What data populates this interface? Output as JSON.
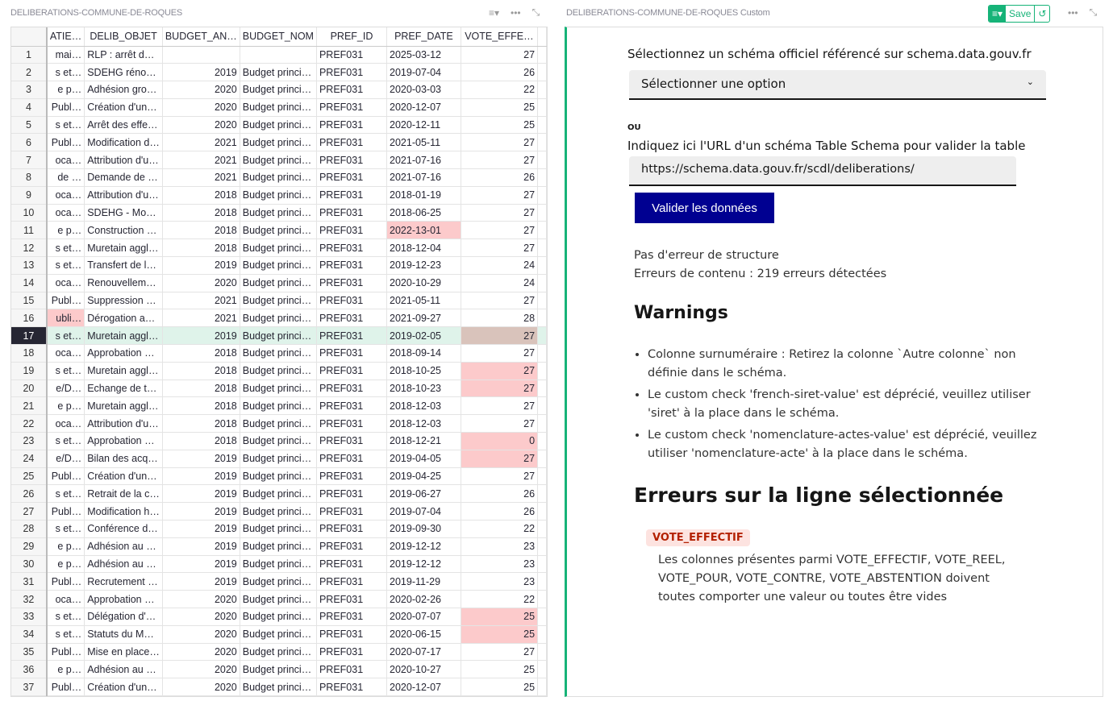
{
  "left_panel": {
    "title": "DELIBERATIONS-COMMUNE-DE-ROQUES",
    "columns": [
      "ATIE…",
      "DELIB_OBJET",
      "BUDGET_AN…",
      "BUDGET_NOM",
      "PREF_ID",
      "PREF_DATE",
      "VOTE_EFFE…"
    ],
    "rows": [
      [
        "1",
        "mai…",
        "RLP : arrêt d…",
        "",
        "",
        "PREF031",
        "2025-03-12",
        "27"
      ],
      [
        "2",
        "s et…",
        "SDEHG réno…",
        "2019",
        "Budget princi…",
        "PREF031",
        "2019-07-04",
        "26"
      ],
      [
        "3",
        "e p…",
        "Adhésion gro…",
        "2020",
        "Budget princi…",
        "PREF031",
        "2020-03-03",
        "22"
      ],
      [
        "4",
        "Publ…",
        "Création d'un…",
        "2020",
        "Budget princi…",
        "PREF031",
        "2020-12-07",
        "25"
      ],
      [
        "5",
        "s et…",
        "Arrêt des effe…",
        "2020",
        "Budget princi…",
        "PREF031",
        "2020-12-11",
        "25"
      ],
      [
        "6",
        "Publ…",
        "Modification d…",
        "2021",
        "Budget princi…",
        "PREF031",
        "2021-05-11",
        "27"
      ],
      [
        "7",
        "oca…",
        "Attribution d'u…",
        "2021",
        "Budget princi…",
        "PREF031",
        "2021-07-16",
        "27"
      ],
      [
        "8",
        "de …",
        "Demande de …",
        "2021",
        "Budget princi…",
        "PREF031",
        "2021-07-16",
        "26"
      ],
      [
        "9",
        "oca…",
        "Attribution d'u…",
        "2018",
        "Budget princi…",
        "PREF031",
        "2018-01-19",
        "27"
      ],
      [
        "10",
        "oca…",
        "SDEHG - Mo…",
        "2018",
        "Budget princi…",
        "PREF031",
        "2018-06-25",
        "27"
      ],
      [
        "11",
        "e p…",
        "Construction …",
        "2018",
        "Budget princi…",
        "PREF031",
        "2022-13-01",
        "27"
      ],
      [
        "12",
        "s et…",
        "Muretain aggl…",
        "2018",
        "Budget princi…",
        "PREF031",
        "2018-12-04",
        "27"
      ],
      [
        "13",
        "s et…",
        "Transfert de l…",
        "2019",
        "Budget princi…",
        "PREF031",
        "2019-12-23",
        "24"
      ],
      [
        "14",
        "oca…",
        "Renouvellem…",
        "2020",
        "Budget princi…",
        "PREF031",
        "2020-10-29",
        "24"
      ],
      [
        "15",
        "Publ…",
        "Suppression …",
        "2021",
        "Budget princi…",
        "PREF031",
        "2021-05-11",
        "27"
      ],
      [
        "16",
        "ubli…",
        "Dérogation a…",
        "2021",
        "Budget princi…",
        "PREF031",
        "2021-09-27",
        "28"
      ],
      [
        "17",
        "s et…",
        "Muretain aggl…",
        "2019",
        "Budget princi…",
        "PREF031",
        "2019-02-05",
        "27"
      ],
      [
        "18",
        "oca…",
        "Approbation …",
        "2018",
        "Budget princi…",
        "PREF031",
        "2018-09-14",
        "27"
      ],
      [
        "19",
        "s et…",
        "Muretain aggl…",
        "2018",
        "Budget princi…",
        "PREF031",
        "2018-10-25",
        "27"
      ],
      [
        "20",
        "e/D…",
        "Echange de t…",
        "2018",
        "Budget princi…",
        "PREF031",
        "2018-10-23",
        "27"
      ],
      [
        "21",
        "e p…",
        "Muretain aggl…",
        "2018",
        "Budget princi…",
        "PREF031",
        "2018-12-03",
        "27"
      ],
      [
        "22",
        "oca…",
        "Attribution d'u…",
        "2018",
        "Budget princi…",
        "PREF031",
        "2018-12-03",
        "27"
      ],
      [
        "23",
        "s et…",
        "Approbation …",
        "2018",
        "Budget princi…",
        "PREF031",
        "2018-12-21",
        "0"
      ],
      [
        "24",
        "e/D…",
        "Bilan des acq…",
        "2019",
        "Budget princi…",
        "PREF031",
        "2019-04-05",
        "27"
      ],
      [
        "25",
        "Publ…",
        "Création d'un…",
        "2019",
        "Budget princi…",
        "PREF031",
        "2019-04-25",
        "27"
      ],
      [
        "26",
        "s et…",
        "Retrait de la c…",
        "2019",
        "Budget princi…",
        "PREF031",
        "2019-06-27",
        "26"
      ],
      [
        "27",
        "Publ…",
        "Modification h…",
        "2019",
        "Budget princi…",
        "PREF031",
        "2019-07-04",
        "26"
      ],
      [
        "28",
        "s et…",
        "Conférence d…",
        "2019",
        "Budget princi…",
        "PREF031",
        "2019-09-30",
        "22"
      ],
      [
        "29",
        "e p…",
        "Adhésion au …",
        "2019",
        "Budget princi…",
        "PREF031",
        "2019-12-12",
        "23"
      ],
      [
        "30",
        "e p…",
        "Adhésion au …",
        "2019",
        "Budget princi…",
        "PREF031",
        "2019-12-12",
        "23"
      ],
      [
        "31",
        "Publ…",
        "Recrutement …",
        "2019",
        "Budget princi…",
        "PREF031",
        "2019-11-29",
        "23"
      ],
      [
        "32",
        "oca…",
        "Approbation …",
        "2020",
        "Budget princi…",
        "PREF031",
        "2020-02-26",
        "22"
      ],
      [
        "33",
        "s et…",
        "Délégation d'…",
        "2020",
        "Budget princi…",
        "PREF031",
        "2020-07-07",
        "25"
      ],
      [
        "34",
        "s et…",
        "Statuts du M…",
        "2020",
        "Budget princi…",
        "PREF031",
        "2020-06-15",
        "25"
      ],
      [
        "35",
        "Publ…",
        "Mise en place…",
        "2020",
        "Budget princi…",
        "PREF031",
        "2020-07-17",
        "27"
      ],
      [
        "36",
        "e p…",
        "Adhésion au …",
        "2020",
        "Budget princi…",
        "PREF031",
        "2020-10-27",
        "25"
      ],
      [
        "37",
        "Publ…",
        "Création d'un…",
        "2020",
        "Budget princi…",
        "PREF031",
        "2020-12-07",
        "25"
      ]
    ],
    "selected_row": "17",
    "error_cells": [
      [
        "11",
        6
      ],
      [
        "16",
        1
      ],
      [
        "17",
        7
      ],
      [
        "19",
        7
      ],
      [
        "20",
        7
      ],
      [
        "23",
        7
      ],
      [
        "24",
        7
      ],
      [
        "33",
        7
      ],
      [
        "34",
        7
      ]
    ],
    "colors": {
      "error": "#fccacb",
      "selected": "#dff3ea",
      "accent": "#16b378"
    }
  },
  "right_panel": {
    "title": "DELIBERATIONS-COMMUNE-DE-ROQUES Custom",
    "save_label": "Save",
    "schema_label": "Sélectionnez un schéma officiel référencé sur schema.data.gouv.fr",
    "select_value": "Sélectionner une option",
    "or_label": "OU",
    "url_label": "Indiquez ici l'URL d'un schéma Table Schema pour valider la table",
    "url_value": "https://schema.data.gouv.fr/scdl/deliberations/",
    "validate_label": "Valider les données",
    "structure_status": "Pas d'erreur de structure",
    "content_status": "Erreurs de contenu : 219 erreurs détectées",
    "warnings_title": "Warnings",
    "warnings": [
      "Colonne surnuméraire : Retirez la colonne `Autre colonne` non définie dans le schéma.",
      "Le custom check 'french-siret-value' est déprécié, veuillez utiliser 'siret' à la place dans le schéma.",
      "Le custom check 'nomenclature-actes-value' est déprécié, veuillez utiliser 'nomenclature-acte' à la place dans le schéma."
    ],
    "errors_title": "Erreurs sur la ligne sélectionnée",
    "error_tag": "VOTE_EFFECTIF",
    "error_message": "Les colonnes présentes parmi VOTE_EFFECTIF, VOTE_REEL, VOTE_POUR, VOTE_CONTRE, VOTE_ABSTENTION doivent toutes comporter une valeur ou toutes être vides"
  }
}
